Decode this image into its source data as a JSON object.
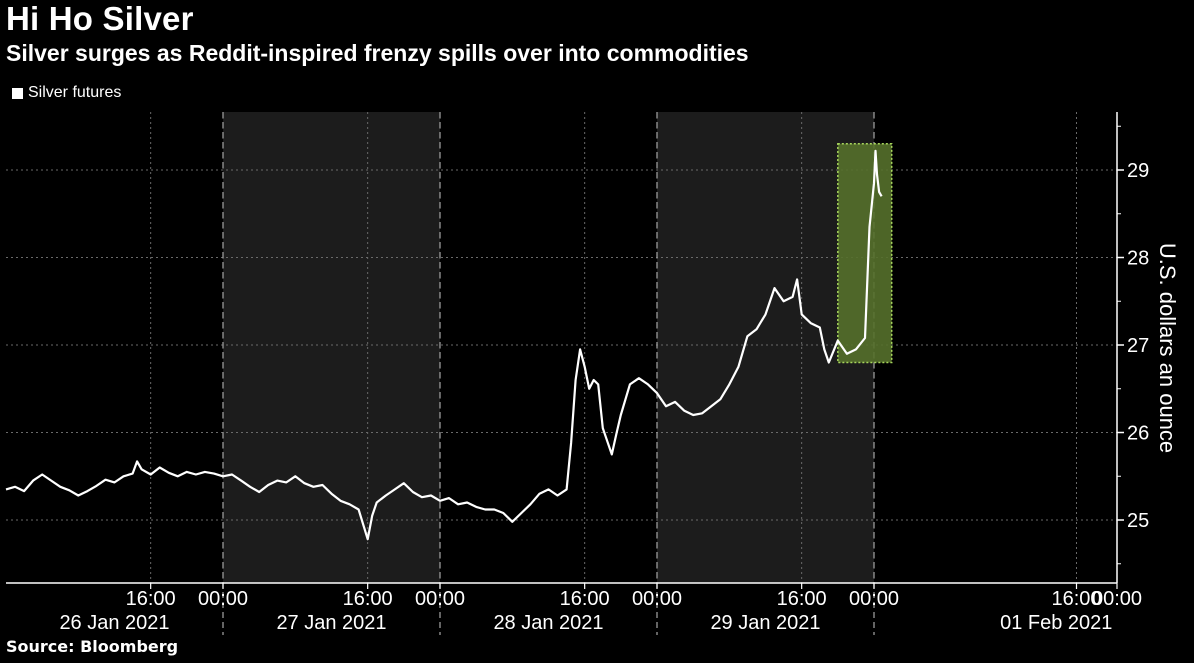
{
  "title": "Hi Ho Silver",
  "subtitle": "Silver surges as Reddit-inspired frenzy spills over into commodities",
  "source": "Source: Bloomberg",
  "colors": {
    "background": "#000000",
    "shade": "#1c1c1c",
    "line": "#ffffff",
    "highlight_fill": "#55702b",
    "highlight_stroke": "#a7d65c"
  },
  "chart_data": {
    "type": "line",
    "title": "Hi Ho Silver",
    "subtitle": "Silver surges as Reddit-inspired frenzy spills over into commodities",
    "ylabel": "U.S. dollars an ounce",
    "xlabel": "",
    "ylim": [
      24.4,
      29.7
    ],
    "y_ticks": [
      25,
      26,
      27,
      28,
      29
    ],
    "x_unit": "hours from 26 Jan 2021 00:00",
    "xlim": [
      0,
      144
    ],
    "grid": true,
    "legend": {
      "position": "top-left",
      "entries": [
        "Silver futures"
      ]
    },
    "time_ticks": [
      {
        "label": "16:00",
        "t": 16
      },
      {
        "label": "00:00",
        "t": 24
      },
      {
        "label": "16:00",
        "t": 40
      },
      {
        "label": "00:00",
        "t": 48
      },
      {
        "label": "16:00",
        "t": 64
      },
      {
        "label": "00:00",
        "t": 72
      },
      {
        "label": "16:00",
        "t": 88
      },
      {
        "label": "00:00",
        "t": 96
      },
      {
        "label": "16:00",
        "t": 136
      },
      {
        "label": "00:00",
        "t": 144
      }
    ],
    "date_labels": [
      {
        "label": "26 Jan 2021",
        "t": 12
      },
      {
        "label": "27 Jan 2021",
        "t": 36
      },
      {
        "label": "28 Jan 2021",
        "t": 60
      },
      {
        "label": "29 Jan 2021",
        "t": 84
      },
      {
        "label": "01 Feb 2021",
        "t": 132
      }
    ],
    "day_separators": [
      {
        "label": "27 Jan 2021",
        "t": 24
      },
      {
        "label": "28 Jan 2021",
        "t": 48
      },
      {
        "label": "29 Jan 2021",
        "t": 72
      },
      {
        "label": "01 Feb 2021",
        "t": 96
      }
    ],
    "shaded_ranges": [
      [
        24,
        48
      ],
      [
        72,
        96
      ]
    ],
    "highlight": {
      "x_range": [
        92,
        99.5
      ],
      "y_range": [
        26.8,
        29.3
      ]
    },
    "series": [
      {
        "name": "Silver futures",
        "points": [
          [
            0,
            25.35
          ],
          [
            1,
            25.38
          ],
          [
            2,
            25.33
          ],
          [
            3,
            25.45
          ],
          [
            4,
            25.52
          ],
          [
            5,
            25.45
          ],
          [
            6,
            25.38
          ],
          [
            7,
            25.34
          ],
          [
            8,
            25.28
          ],
          [
            9,
            25.33
          ],
          [
            10,
            25.39
          ],
          [
            11,
            25.46
          ],
          [
            12,
            25.43
          ],
          [
            13,
            25.5
          ],
          [
            14,
            25.53
          ],
          [
            14.5,
            25.67
          ],
          [
            15,
            25.58
          ],
          [
            16,
            25.52
          ],
          [
            17,
            25.6
          ],
          [
            18,
            25.54
          ],
          [
            19,
            25.5
          ],
          [
            20,
            25.55
          ],
          [
            21,
            25.52
          ],
          [
            22,
            25.55
          ],
          [
            23,
            25.53
          ],
          [
            24,
            25.5
          ],
          [
            25,
            25.52
          ],
          [
            26,
            25.45
          ],
          [
            27,
            25.38
          ],
          [
            28,
            25.32
          ],
          [
            29,
            25.4
          ],
          [
            30,
            25.45
          ],
          [
            31,
            25.43
          ],
          [
            32,
            25.5
          ],
          [
            33,
            25.42
          ],
          [
            34,
            25.38
          ],
          [
            35,
            25.4
          ],
          [
            36,
            25.3
          ],
          [
            37,
            25.22
          ],
          [
            38,
            25.18
          ],
          [
            39,
            25.12
          ],
          [
            40,
            24.78
          ],
          [
            40.5,
            25.05
          ],
          [
            41,
            25.2
          ],
          [
            42,
            25.28
          ],
          [
            43,
            25.35
          ],
          [
            44,
            25.42
          ],
          [
            45,
            25.32
          ],
          [
            46,
            25.26
          ],
          [
            47,
            25.28
          ],
          [
            48,
            25.22
          ],
          [
            49,
            25.25
          ],
          [
            50,
            25.18
          ],
          [
            51,
            25.2
          ],
          [
            52,
            25.15
          ],
          [
            53,
            25.12
          ],
          [
            54,
            25.12
          ],
          [
            55,
            25.08
          ],
          [
            56,
            24.98
          ],
          [
            57,
            25.08
          ],
          [
            58,
            25.18
          ],
          [
            59,
            25.3
          ],
          [
            60,
            25.35
          ],
          [
            61,
            25.28
          ],
          [
            62,
            25.35
          ],
          [
            62.5,
            25.88
          ],
          [
            63,
            26.6
          ],
          [
            63.5,
            26.95
          ],
          [
            64,
            26.75
          ],
          [
            64.5,
            26.5
          ],
          [
            65,
            26.6
          ],
          [
            65.5,
            26.55
          ],
          [
            66,
            26.05
          ],
          [
            66.5,
            25.9
          ],
          [
            67,
            25.75
          ],
          [
            67.5,
            25.98
          ],
          [
            68,
            26.2
          ],
          [
            69,
            26.55
          ],
          [
            70,
            26.62
          ],
          [
            71,
            26.55
          ],
          [
            72,
            26.45
          ],
          [
            73,
            26.3
          ],
          [
            74,
            26.35
          ],
          [
            75,
            26.25
          ],
          [
            76,
            26.2
          ],
          [
            77,
            26.22
          ],
          [
            78,
            26.3
          ],
          [
            79,
            26.38
          ],
          [
            80,
            26.55
          ],
          [
            81,
            26.75
          ],
          [
            82,
            27.1
          ],
          [
            83,
            27.18
          ],
          [
            84,
            27.35
          ],
          [
            85,
            27.65
          ],
          [
            86,
            27.5
          ],
          [
            87,
            27.55
          ],
          [
            87.5,
            27.75
          ],
          [
            88,
            27.35
          ],
          [
            89,
            27.25
          ],
          [
            90,
            27.2
          ],
          [
            90.5,
            26.95
          ],
          [
            91,
            26.8
          ],
          [
            92,
            27.05
          ],
          [
            93,
            26.9
          ],
          [
            94,
            26.95
          ],
          [
            95,
            27.08
          ],
          [
            95.5,
            28.35
          ],
          [
            96,
            28.85
          ],
          [
            96.3,
            29.22
          ],
          [
            96.6,
            28.95
          ],
          [
            97,
            28.75
          ],
          [
            97.5,
            28.7
          ]
        ]
      }
    ]
  }
}
